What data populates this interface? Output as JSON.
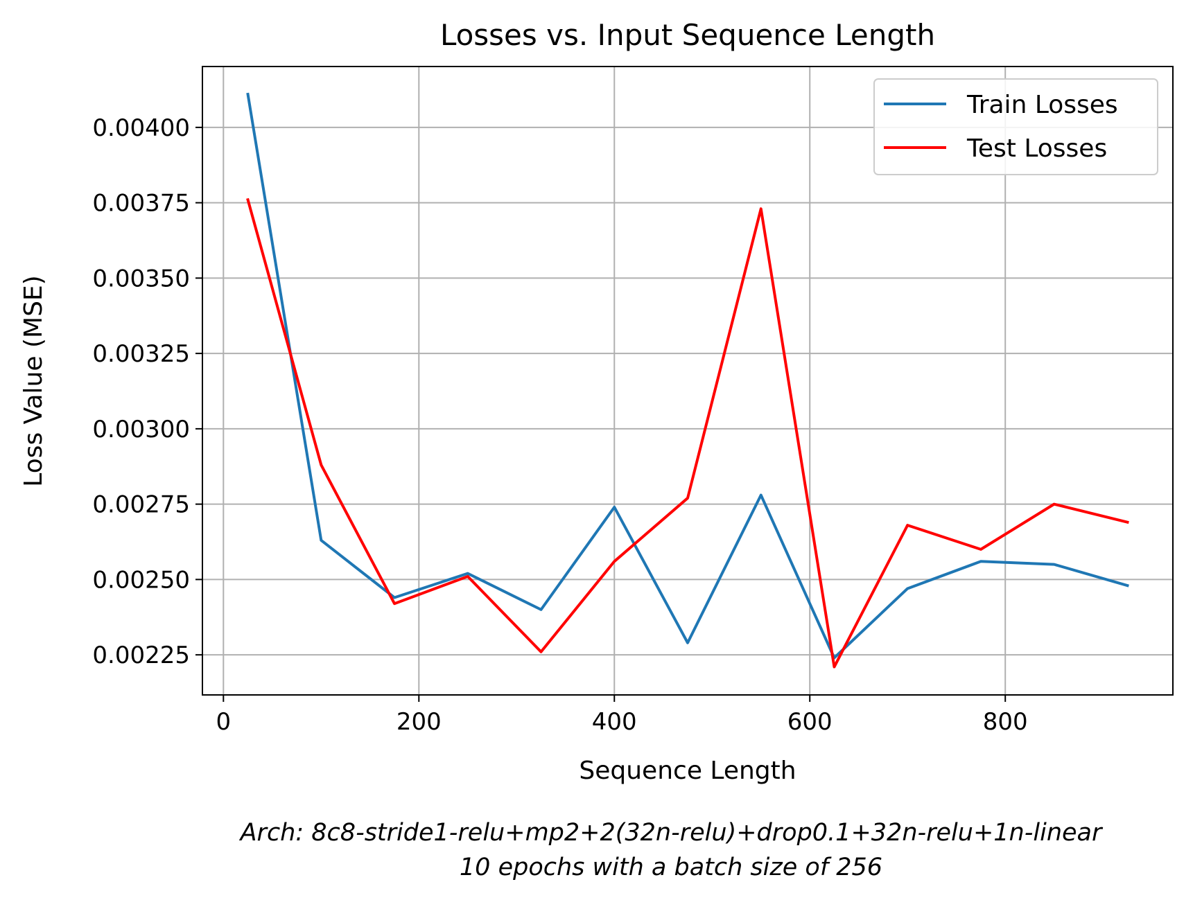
{
  "chart_data": {
    "type": "line",
    "title": "Losses vs. Input Sequence Length",
    "xlabel": "Sequence Length",
    "ylabel": "Loss Value (MSE)",
    "caption_lines": [
      "Arch: 8c8-stride1-relu+mp2+2(32n-relu)+drop0.1+32n-relu+1n-linear",
      "10 epochs with a batch size of 256"
    ],
    "x": [
      25,
      100,
      175,
      250,
      325,
      400,
      475,
      550,
      625,
      700,
      775,
      850,
      925
    ],
    "series": [
      {
        "name": "Train Losses",
        "color": "#1f77b4",
        "values": [
          0.00411,
          0.00263,
          0.00244,
          0.00252,
          0.0024,
          0.00274,
          0.00229,
          0.00278,
          0.00224,
          0.00247,
          0.00256,
          0.00255,
          0.00248
        ]
      },
      {
        "name": "Test Losses",
        "color": "#ff0000",
        "values": [
          0.00376,
          0.00288,
          0.00242,
          0.00251,
          0.00226,
          0.00256,
          0.00277,
          0.00373,
          0.00221,
          0.00268,
          0.0026,
          0.00275,
          0.00269
        ]
      }
    ],
    "xlim": [
      -21.5,
      971.5
    ],
    "ylim": [
      0.002117,
      0.004202
    ],
    "xticks": [
      0,
      200,
      400,
      600,
      800
    ],
    "xtick_labels": [
      "0",
      "200",
      "400",
      "600",
      "800"
    ],
    "yticks": [
      0.00225,
      0.0025,
      0.00275,
      0.003,
      0.00325,
      0.0035,
      0.00375,
      0.004
    ],
    "ytick_labels": [
      "0.00225",
      "0.00250",
      "0.00275",
      "0.00300",
      "0.00325",
      "0.00350",
      "0.00375",
      "0.00400"
    ],
    "grid": true,
    "legend_position": "upper right"
  }
}
